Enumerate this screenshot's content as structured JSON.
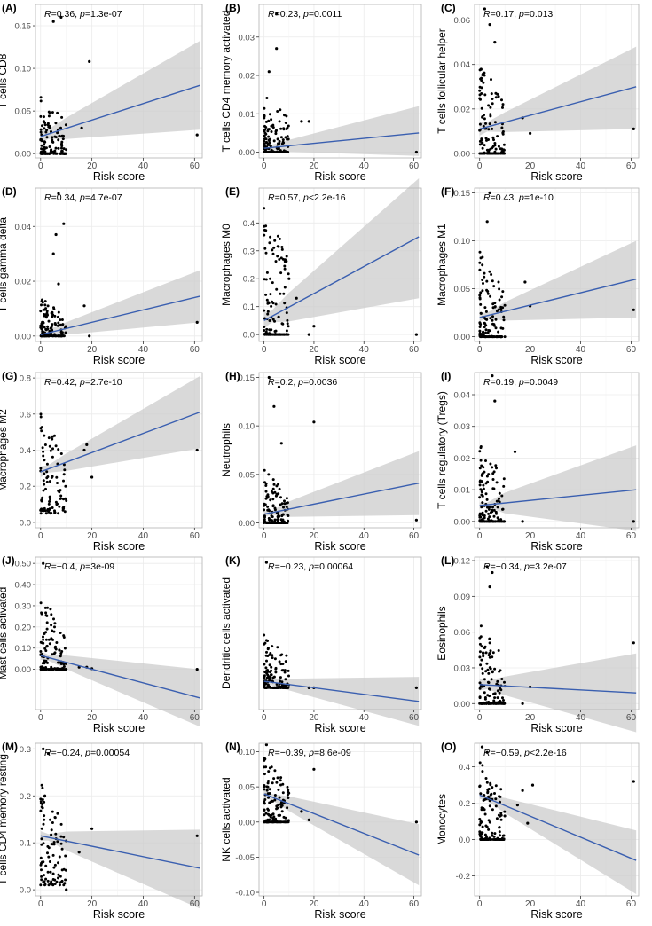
{
  "figure": {
    "colors": {
      "line": "#3a5fb0",
      "band": "#cccccc",
      "grid": "#ebebeb",
      "point": "#000000",
      "panel_border": "#b3b3b3"
    }
  },
  "chart_data": [
    {
      "panel": "(A)",
      "type": "scatter",
      "ylabel": "T cells CD8",
      "xlabel": "Risk score",
      "stat": {
        "r_label": "R",
        "r": "=0.36,",
        "p_label": "p",
        "p": "=1.3e-07"
      },
      "xlim": [
        -2,
        63
      ],
      "ylim": [
        -0.005,
        0.175
      ],
      "xticks": [
        0,
        20,
        40,
        60
      ],
      "yticks": [
        0.0,
        0.05,
        0.1,
        0.15
      ],
      "ytick_labels": [
        "0.00",
        "0.05",
        "0.10",
        "0.15"
      ],
      "fit": {
        "x0": 0,
        "y0": 0.02,
        "x1": 62,
        "y1": 0.08
      },
      "band": {
        "lo0": 0.012,
        "hi0": 0.028,
        "lo1": 0.028,
        "hi1": 0.132,
        "xmin": 0.5,
        "ymin": 0.016,
        "ymax": 0.024
      },
      "cluster": {
        "xmax": 10,
        "ymax": 0.07,
        "ybase": 0
      },
      "outliers": [
        [
          5,
          0.155
        ],
        [
          8,
          0.16
        ],
        [
          61,
          0.022
        ],
        [
          19,
          0.108
        ],
        [
          16,
          0.03
        ]
      ]
    },
    {
      "panel": "(B)",
      "type": "scatter",
      "ylabel": "T cells CD4 memory activated",
      "xlabel": "Risk score",
      "stat": {
        "r_label": "R",
        "r": "=0.23,",
        "p_label": "p",
        "p": "=0.0011"
      },
      "xlim": [
        -2,
        63
      ],
      "ylim": [
        -0.0015,
        0.0385
      ],
      "xticks": [
        0,
        20,
        40,
        60
      ],
      "yticks": [
        0.0,
        0.01,
        0.02,
        0.03
      ],
      "ytick_labels": [
        "0.00",
        "0.01",
        "0.02",
        "0.03"
      ],
      "fit": {
        "x0": 0,
        "y0": 0.001,
        "x1": 62,
        "y1": 0.005
      },
      "band": {
        "lo0": 0.0,
        "hi0": 0.002,
        "lo1": -0.001,
        "hi1": 0.012,
        "xmin": 0.5,
        "ymin": 0.0005,
        "ymax": 0.0015
      },
      "cluster": {
        "xmax": 10,
        "ymax": 0.016,
        "ybase": 0
      },
      "outliers": [
        [
          5,
          0.036
        ],
        [
          5,
          0.027
        ],
        [
          2,
          0.021
        ],
        [
          15,
          0.008
        ],
        [
          18,
          0.008
        ],
        [
          61,
          0.0
        ]
      ]
    },
    {
      "panel": "(C)",
      "type": "scatter",
      "ylabel": "T cells follicular helper",
      "xlabel": "Risk score",
      "stat": {
        "r_label": "R",
        "r": "=0.17,",
        "p_label": "p",
        "p": "=0.013"
      },
      "xlim": [
        -2,
        63
      ],
      "ylim": [
        -0.002,
        0.067
      ],
      "xticks": [
        0,
        20,
        40,
        60
      ],
      "yticks": [
        0.0,
        0.02,
        0.04,
        0.06
      ],
      "ytick_labels": [
        "0.00",
        "0.02",
        "0.04",
        "0.06"
      ],
      "fit": {
        "x0": 0,
        "y0": 0.011,
        "x1": 62,
        "y1": 0.03
      },
      "band": {
        "lo0": 0.008,
        "hi0": 0.014,
        "lo1": 0.011,
        "hi1": 0.048,
        "xmin": 0.5,
        "ymin": 0.009,
        "ymax": 0.013
      },
      "cluster": {
        "xmax": 10,
        "ymax": 0.045,
        "ybase": 0
      },
      "outliers": [
        [
          2,
          0.065
        ],
        [
          4,
          0.058
        ],
        [
          6,
          0.05
        ],
        [
          17,
          0.016
        ],
        [
          20,
          0.009
        ],
        [
          61,
          0.011
        ]
      ]
    },
    {
      "panel": "(D)",
      "type": "scatter",
      "ylabel": "T cells gamma delta",
      "xlabel": "Risk score",
      "stat": {
        "r_label": "R",
        "r": "=0.34,",
        "p_label": "p",
        "p": "=4.7e-07"
      },
      "xlim": [
        -2,
        63
      ],
      "ylim": [
        -0.002,
        0.054
      ],
      "xticks": [
        0,
        20,
        40,
        60
      ],
      "yticks": [
        0.0,
        0.02,
        0.04
      ],
      "ytick_labels": [
        "0.00",
        "0.02",
        "0.04"
      ],
      "fit": {
        "x0": 0,
        "y0": 0.0005,
        "x1": 62,
        "y1": 0.0145
      },
      "band": {
        "lo0": -0.001,
        "hi0": 0.002,
        "lo1": 0.005,
        "hi1": 0.024,
        "xmin": 0.5,
        "ymin": 0.0,
        "ymax": 0.002
      },
      "cluster": {
        "xmax": 10,
        "ymax": 0.014,
        "ybase": 0
      },
      "outliers": [
        [
          7,
          0.052
        ],
        [
          9,
          0.041
        ],
        [
          6,
          0.037
        ],
        [
          5,
          0.03
        ],
        [
          7,
          0.019
        ],
        [
          17,
          0.011
        ],
        [
          61,
          0.005
        ],
        [
          19,
          0.0
        ]
      ]
    },
    {
      "panel": "(E)",
      "type": "scatter",
      "ylabel": "Macrophages M0",
      "xlabel": "Risk score",
      "stat": {
        "r_label": "R",
        "r": "=0.57,",
        "p_label": "p",
        "p": "<2.2e-16"
      },
      "xlim": [
        -2,
        63
      ],
      "ylim": [
        -0.025,
        0.525
      ],
      "xticks": [
        0,
        20,
        40,
        60
      ],
      "yticks": [
        0.0,
        0.1,
        0.2,
        0.3,
        0.4
      ],
      "ytick_labels": [
        "0.0",
        "0.1",
        "0.2",
        "0.3",
        "0.4"
      ],
      "fit": {
        "x0": 0,
        "y0": 0.05,
        "x1": 62,
        "y1": 0.35
      },
      "band": {
        "lo0": 0.02,
        "hi0": 0.08,
        "lo1": 0.13,
        "hi1": 0.56,
        "xmin": 0.5,
        "ymin": 0.04,
        "ymax": 0.07
      },
      "cluster": {
        "xmax": 10,
        "ymax": 0.48,
        "ybase": 0
      },
      "outliers": [
        [
          13,
          0.13
        ],
        [
          18,
          0.0
        ],
        [
          20,
          0.03
        ],
        [
          61,
          0.0
        ],
        [
          10,
          0.2
        ]
      ]
    },
    {
      "panel": "(F)",
      "type": "scatter",
      "ylabel": "Macrophages M1",
      "xlabel": "Risk score",
      "stat": {
        "r_label": "R",
        "r": "=0.43,",
        "p_label": "p",
        "p": "=1e-10"
      },
      "xlim": [
        -2,
        63
      ],
      "ylim": [
        -0.005,
        0.155
      ],
      "xticks": [
        0,
        20,
        40,
        60
      ],
      "yticks": [
        0.0,
        0.05,
        0.1,
        0.15
      ],
      "ytick_labels": [
        "0.00",
        "0.05",
        "0.10",
        "0.15"
      ],
      "fit": {
        "x0": 0,
        "y0": 0.02,
        "x1": 62,
        "y1": 0.06
      },
      "band": {
        "lo0": 0.016,
        "hi0": 0.025,
        "lo1": 0.02,
        "hi1": 0.1,
        "xmin": 0.5,
        "ymin": 0.018,
        "ymax": 0.023
      },
      "cluster": {
        "xmax": 10,
        "ymax": 0.09,
        "ybase": 0
      },
      "outliers": [
        [
          4,
          0.15
        ],
        [
          3,
          0.12
        ],
        [
          18,
          0.057
        ],
        [
          20,
          0.032
        ],
        [
          61,
          0.028
        ]
      ]
    },
    {
      "panel": "(G)",
      "type": "scatter",
      "ylabel": "Macrophages M2",
      "xlabel": "Risk score",
      "stat": {
        "r_label": "R",
        "r": "=0.42,",
        "p_label": "p",
        "p": "=2.7e-10"
      },
      "xlim": [
        -2,
        63
      ],
      "ylim": [
        -0.03,
        0.83
      ],
      "xticks": [
        0,
        20,
        40,
        60
      ],
      "yticks": [
        0.0,
        0.2,
        0.4,
        0.6,
        0.8
      ],
      "ytick_labels": [
        "0.0",
        "0.2",
        "0.4",
        "0.6",
        "0.8"
      ],
      "fit": {
        "x0": 0,
        "y0": 0.28,
        "x1": 62,
        "y1": 0.61
      },
      "band": {
        "lo0": 0.25,
        "hi0": 0.31,
        "lo1": 0.41,
        "hi1": 0.81,
        "xmin": 0.5,
        "ymin": 0.26,
        "ymax": 0.3
      },
      "cluster": {
        "xmax": 10,
        "ymax": 0.62,
        "ybase": 0.05
      },
      "outliers": [
        [
          17,
          0.4
        ],
        [
          20,
          0.25
        ],
        [
          18,
          0.43
        ],
        [
          61,
          0.4
        ]
      ]
    },
    {
      "panel": "(H)",
      "type": "scatter",
      "ylabel": "Neutrophils",
      "xlabel": "Risk score",
      "stat": {
        "r_label": "R",
        "r": "=0.2,",
        "p_label": "p",
        "p": "=0.0036"
      },
      "xlim": [
        -2,
        63
      ],
      "ylim": [
        -0.005,
        0.155
      ],
      "xticks": [
        0,
        20,
        40,
        60
      ],
      "yticks": [
        0.0,
        0.05,
        0.1,
        0.15
      ],
      "ytick_labels": [
        "0.00",
        "0.05",
        "0.10",
        "0.15"
      ],
      "fit": {
        "x0": 0,
        "y0": 0.009,
        "x1": 62,
        "y1": 0.041
      },
      "band": {
        "lo0": 0.006,
        "hi0": 0.012,
        "lo1": 0.008,
        "hi1": 0.074,
        "xmin": 0.5,
        "ymin": 0.007,
        "ymax": 0.011
      },
      "cluster": {
        "xmax": 10,
        "ymax": 0.055,
        "ybase": 0
      },
      "outliers": [
        [
          2,
          0.15
        ],
        [
          6,
          0.14
        ],
        [
          4,
          0.12
        ],
        [
          7,
          0.082
        ],
        [
          20,
          0.104
        ],
        [
          61,
          0.003
        ]
      ]
    },
    {
      "panel": "(I)",
      "type": "scatter",
      "ylabel": "T cells regulatory (Tregs)",
      "xlabel": "Risk score",
      "stat": {
        "r_label": "R",
        "r": "=0.19,",
        "p_label": "p",
        "p": "=0.0049"
      },
      "xlim": [
        -2,
        63
      ],
      "ylim": [
        -0.002,
        0.047
      ],
      "xticks": [
        0,
        20,
        40,
        60
      ],
      "yticks": [
        0.0,
        0.01,
        0.02,
        0.03,
        0.04
      ],
      "ytick_labels": [
        "0.00",
        "0.01",
        "0.02",
        "0.03",
        "0.04"
      ],
      "fit": {
        "x0": 0,
        "y0": 0.005,
        "x1": 62,
        "y1": 0.01
      },
      "band": {
        "lo0": 0.004,
        "hi0": 0.006,
        "lo1": -0.003,
        "hi1": 0.024,
        "xmin": 0.5,
        "ymin": 0.004,
        "ymax": 0.006
      },
      "cluster": {
        "xmax": 10,
        "ymax": 0.025,
        "ybase": 0
      },
      "outliers": [
        [
          5,
          0.046
        ],
        [
          6,
          0.038
        ],
        [
          14,
          0.022
        ],
        [
          17,
          0.0
        ],
        [
          61,
          0.0
        ]
      ]
    },
    {
      "panel": "(J)",
      "type": "scatter",
      "ylabel": "Mast cells activated",
      "xlabel": "Risk score",
      "stat": {
        "r_label": "R",
        "r": "=−0.4,",
        "p_label": "p",
        "p": "=3e-09"
      },
      "xlim": [
        -2,
        63
      ],
      "ylim": [
        -0.19,
        0.53
      ],
      "xticks": [
        0,
        20,
        40,
        60
      ],
      "yticks": [
        0.0,
        0.1,
        0.2,
        0.3,
        0.4,
        0.5
      ],
      "ytick_labels": [
        "0.00",
        "0.10",
        "0.20",
        "0.30",
        "0.40",
        "0.50"
      ],
      "fit": {
        "x0": 0,
        "y0": 0.065,
        "x1": 62,
        "y1": -0.135
      },
      "band": {
        "lo0": 0.045,
        "hi0": 0.085,
        "lo1": -0.27,
        "hi1": 0.0,
        "xmin": 0.5,
        "ymin": 0.05,
        "ymax": 0.08
      },
      "cluster": {
        "xmax": 10,
        "ymax": 0.35,
        "ybase": 0
      },
      "outliers": [
        [
          1,
          0.5
        ],
        [
          15,
          0.01
        ],
        [
          18,
          0.01
        ],
        [
          20,
          0.003
        ],
        [
          61,
          0.0
        ]
      ]
    },
    {
      "panel": "(K)",
      "type": "scatter",
      "ylabel": "Dendritic cells activated",
      "xlabel": "Risk score",
      "stat": {
        "r_label": "R",
        "r": "=−0.23,",
        "p_label": "p",
        "p": "=0.00064"
      },
      "xlim": [
        -2,
        63
      ],
      "ylim": [
        -0.004,
        0.024
      ],
      "xticks": [
        0,
        20,
        40,
        60
      ],
      "yticks": [],
      "ytick_labels": [],
      "fit": {
        "x0": 0,
        "y0": 0.0012,
        "x1": 62,
        "y1": -0.0025
      },
      "band": {
        "lo0": 0.0005,
        "hi0": 0.002,
        "lo1": -0.007,
        "hi1": 0.002,
        "xmin": 0.5,
        "ymin": 0.0008,
        "ymax": 0.0016
      },
      "cluster": {
        "xmax": 10,
        "ymax": 0.01,
        "ybase": 0
      },
      "outliers": [
        [
          1,
          0.023
        ],
        [
          18,
          0.0
        ],
        [
          20,
          0.0
        ],
        [
          61,
          0.0
        ]
      ]
    },
    {
      "panel": "(L)",
      "type": "scatter",
      "ylabel": "Eosinophils",
      "xlabel": "Risk score",
      "stat": {
        "r_label": "R",
        "r": "=−0.34,",
        "p_label": "p",
        "p": "=3.2e-07"
      },
      "xlim": [
        -2,
        63
      ],
      "ylim": [
        -0.005,
        0.123
      ],
      "xticks": [
        0,
        20,
        40,
        60
      ],
      "yticks": [
        0.0,
        0.03,
        0.06,
        0.09,
        0.12
      ],
      "ytick_labels": [
        "0.00",
        "0.03",
        "0.06",
        "0.09",
        "0.12"
      ],
      "fit": {
        "x0": 0,
        "y0": 0.016,
        "x1": 62,
        "y1": 0.009
      },
      "band": {
        "lo0": 0.011,
        "hi0": 0.021,
        "lo1": -0.024,
        "hi1": 0.042,
        "xmin": 0.5,
        "ymin": 0.013,
        "ymax": 0.019
      },
      "cluster": {
        "xmax": 10,
        "ymax": 0.07,
        "ybase": 0
      },
      "outliers": [
        [
          3,
          0.115
        ],
        [
          5,
          0.11
        ],
        [
          4,
          0.098
        ],
        [
          61,
          0.051
        ],
        [
          20,
          0.014
        ],
        [
          17,
          0.0
        ]
      ]
    },
    {
      "panel": "(M)",
      "type": "scatter",
      "ylabel": "T cells CD4 memory resting",
      "xlabel": "Risk score",
      "stat": {
        "r_label": "R",
        "r": "=−0.24,",
        "p_label": "p",
        "p": "=0.00054"
      },
      "xlim": [
        -2,
        63
      ],
      "ylim": [
        -0.013,
        0.312
      ],
      "xticks": [
        0,
        20,
        40,
        60
      ],
      "yticks": [
        0.0,
        0.1,
        0.2,
        0.3
      ],
      "ytick_labels": [
        "0.0",
        "0.1",
        "0.2",
        "0.3"
      ],
      "fit": {
        "x0": 0,
        "y0": 0.115,
        "x1": 62,
        "y1": 0.046
      },
      "band": {
        "lo0": 0.105,
        "hi0": 0.125,
        "lo1": -0.04,
        "hi1": 0.128,
        "xmin": 0.5,
        "ymin": 0.11,
        "ymax": 0.12
      },
      "cluster": {
        "xmax": 10,
        "ymax": 0.23,
        "ybase": 0.01
      },
      "outliers": [
        [
          1,
          0.3
        ],
        [
          3,
          0.29
        ],
        [
          20,
          0.13
        ],
        [
          15,
          0.08
        ],
        [
          61,
          0.115
        ],
        [
          10,
          0.0
        ]
      ]
    },
    {
      "panel": "(N)",
      "type": "scatter",
      "ylabel": "NK cells activated",
      "xlabel": "Risk score",
      "stat": {
        "r_label": "R",
        "r": "=−0.39,",
        "p_label": "p",
        "p": "=8.6e-09"
      },
      "xlim": [
        -2,
        63
      ],
      "ylim": [
        -0.105,
        0.112
      ],
      "xticks": [
        0,
        20,
        40,
        60
      ],
      "yticks": [
        -0.1,
        -0.05,
        0.0,
        0.05,
        0.1
      ],
      "ytick_labels": [
        "-0.10",
        "-0.05",
        "0.00",
        "0.05",
        "0.10"
      ],
      "fit": {
        "x0": 0,
        "y0": 0.04,
        "x1": 62,
        "y1": -0.047
      },
      "band": {
        "lo0": 0.034,
        "hi0": 0.046,
        "lo1": -0.09,
        "hi1": -0.003,
        "xmin": 0.5,
        "ymin": 0.036,
        "ymax": 0.044
      },
      "cluster": {
        "xmax": 10,
        "ymax": 0.095,
        "ybase": 0
      },
      "outliers": [
        [
          1,
          0.11
        ],
        [
          20,
          0.075
        ],
        [
          15,
          0.015
        ],
        [
          18,
          0.003
        ],
        [
          61,
          0.0
        ]
      ]
    },
    {
      "panel": "(O)",
      "type": "scatter",
      "ylabel": "Monocytes",
      "xlabel": "Risk score",
      "stat": {
        "r_label": "R",
        "r": "=−0.59,",
        "p_label": "p",
        "p": "<2.2e-16"
      },
      "xlim": [
        -2,
        63
      ],
      "ylim": [
        -0.31,
        0.53
      ],
      "xticks": [
        0,
        20,
        40,
        60
      ],
      "yticks": [
        -0.2,
        0.0,
        0.2,
        0.4
      ],
      "ytick_labels": [
        "-0.2",
        "0.0",
        "0.2",
        "0.4"
      ],
      "fit": {
        "x0": 0,
        "y0": 0.245,
        "x1": 62,
        "y1": -0.115
      },
      "band": {
        "lo0": 0.225,
        "hi0": 0.265,
        "lo1": -0.3,
        "hi1": 0.05,
        "xmin": 0.5,
        "ymin": 0.23,
        "ymax": 0.26
      },
      "cluster": {
        "xmax": 10,
        "ymax": 0.45,
        "ybase": 0
      },
      "outliers": [
        [
          1,
          0.51
        ],
        [
          3,
          0.48
        ],
        [
          21,
          0.3
        ],
        [
          17,
          0.27
        ],
        [
          19,
          0.09
        ],
        [
          61,
          0.32
        ],
        [
          15,
          0.19
        ]
      ]
    }
  ]
}
